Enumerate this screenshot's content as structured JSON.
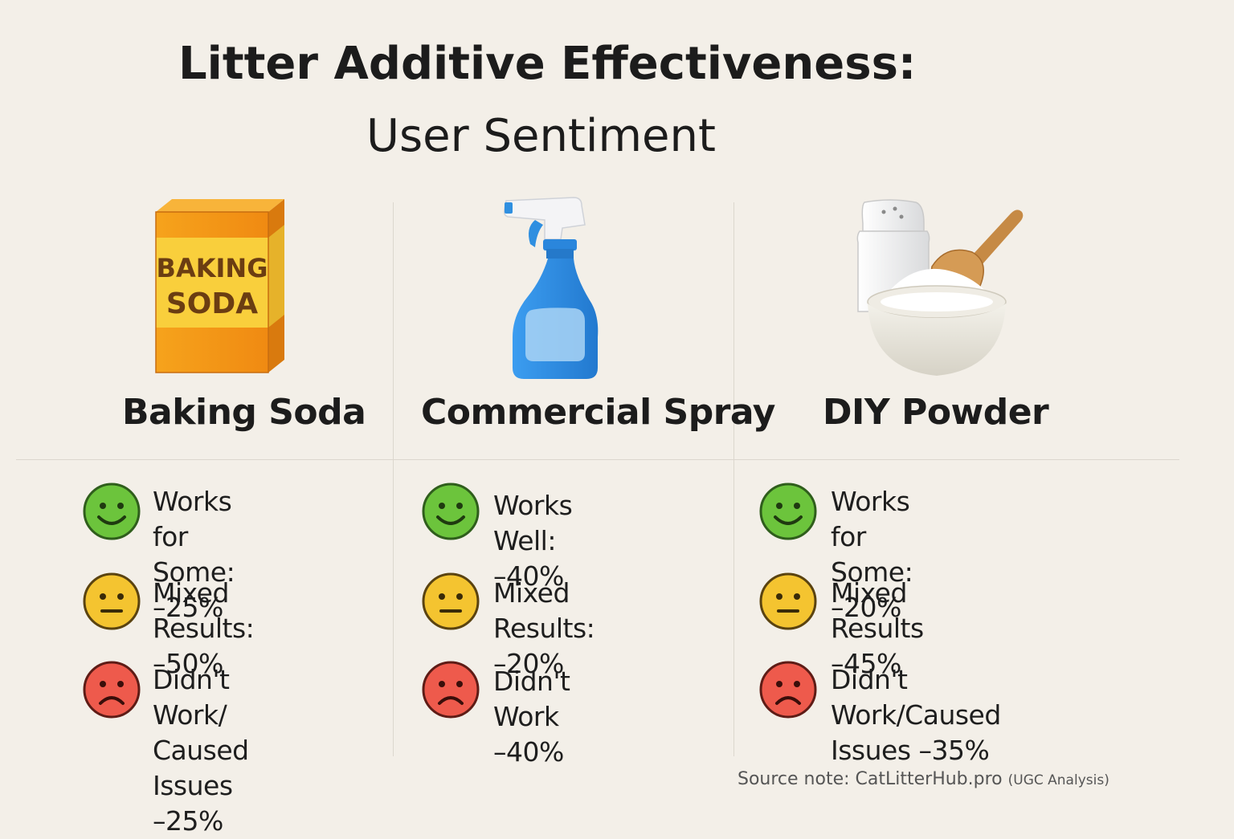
{
  "title": {
    "line1": "Litter Additive Effectiveness:",
    "line2": "User Sentiment"
  },
  "columns": [
    {
      "name": "Baking Soda",
      "illustration": "baking-soda-box",
      "box_label_line1": "BAKING",
      "box_label_line2": "SODA",
      "rows": [
        {
          "sentiment": "positive",
          "icon": "smiley-icon",
          "text": "Works for Some:\n–25%"
        },
        {
          "sentiment": "neutral",
          "icon": "neutral-face-icon",
          "text": "Mixed Results:\n–50%"
        },
        {
          "sentiment": "negative",
          "icon": "frown-icon",
          "text": "Didn't Work/\nCaused Issues\n–25%"
        }
      ]
    },
    {
      "name": "Commercial Spray",
      "illustration": "spray-bottle",
      "rows": [
        {
          "sentiment": "positive",
          "icon": "smiley-icon",
          "text": "Works Well:\n–40%"
        },
        {
          "sentiment": "neutral",
          "icon": "neutral-face-icon",
          "text": "Mixed Results:\n–20%"
        },
        {
          "sentiment": "negative",
          "icon": "frown-icon",
          "text": "Didn't Work\n–40%"
        }
      ]
    },
    {
      "name": "DIY Powder",
      "illustration": "powder-bowl-shaker-scoop",
      "rows": [
        {
          "sentiment": "positive",
          "icon": "smiley-icon",
          "text": "Works for Some:\n–20%"
        },
        {
          "sentiment": "neutral",
          "icon": "neutral-face-icon",
          "text": "Mixed Results\n–45%"
        },
        {
          "sentiment": "negative",
          "icon": "frown-icon",
          "text": "Didn't Work/Caused\nIssues –35%"
        }
      ]
    }
  ],
  "source": {
    "main": "Source note: CatLitterHub.pro",
    "suffix": "(UGC Analysis)"
  },
  "colors": {
    "background": "#f3efe8",
    "positive": "#6cc43c",
    "neutral": "#f4c430",
    "negative": "#ee5a4c",
    "box_orange": "#f5a21a",
    "box_yellow": "#f9cf3c",
    "spray_blue": "#2f8fe0"
  }
}
